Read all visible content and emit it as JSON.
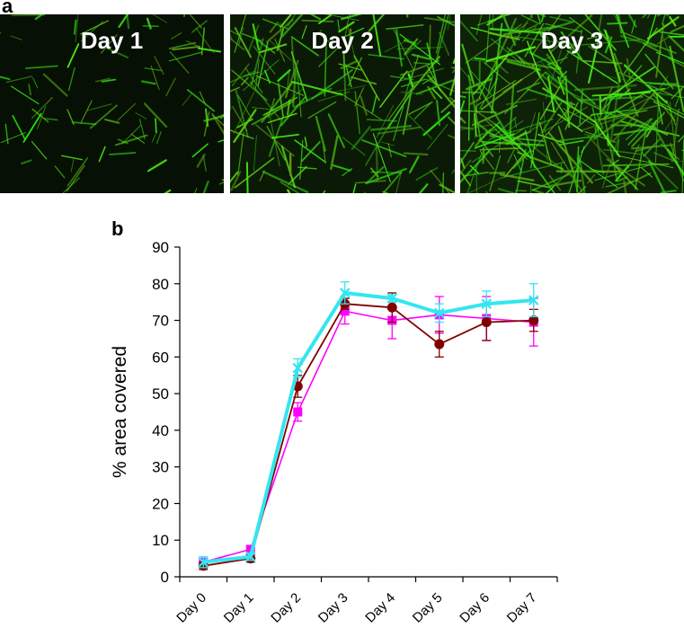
{
  "panel_a": {
    "letter": "a",
    "images": [
      {
        "label": "Day 1",
        "density": 0.18
      },
      {
        "label": "Day 2",
        "density": 0.55
      },
      {
        "label": "Day 3",
        "density": 0.9
      }
    ]
  },
  "panel_b": {
    "letter": "b"
  },
  "chart_data": {
    "type": "line",
    "categories": [
      "Day 0",
      "Day 1",
      "Day 2",
      "Day 3",
      "Day 4",
      "Day 5",
      "Day 6",
      "Day 7"
    ],
    "ylabel": "% area covered",
    "ylim": [
      0,
      90
    ],
    "yticks": [
      0,
      10,
      20,
      30,
      40,
      50,
      60,
      70,
      80,
      90
    ],
    "grid": false,
    "legend": "none",
    "series": [
      {
        "color": "#ff00ff",
        "marker": "square",
        "values": [
          4,
          7.5,
          45,
          72.5,
          70,
          71.5,
          70.5,
          69.5
        ],
        "errors": [
          1,
          1,
          2.5,
          3.5,
          5,
          5,
          6,
          6.5
        ]
      },
      {
        "color": "#800000",
        "marker": "circle",
        "values": [
          3,
          5,
          52,
          74.5,
          73.5,
          63.5,
          69.5,
          70
        ],
        "errors": [
          1,
          1,
          3,
          1.5,
          4,
          3.5,
          5,
          3
        ]
      },
      {
        "color": "#33e6f0",
        "marker": "cross",
        "values": [
          4,
          5.5,
          57,
          77.5,
          76,
          72,
          74.5,
          75.5
        ],
        "errors": [
          1.5,
          1,
          2.5,
          3,
          1,
          2.5,
          3.5,
          4.5
        ]
      }
    ]
  }
}
